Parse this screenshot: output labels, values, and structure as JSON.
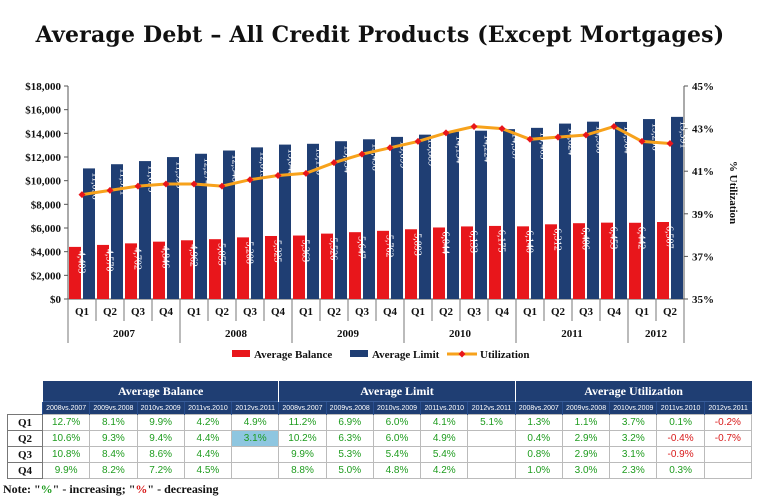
{
  "chart_data": {
    "type": "bar",
    "title": "Average Debt – All Credit Products (Except Mortgages)",
    "ylabel": "",
    "y2label": "% Utilization",
    "ylim": [
      0,
      18000
    ],
    "y2lim": [
      35,
      45
    ],
    "yticks": [
      "$0",
      "$2,000",
      "$4,000",
      "$6,000",
      "$8,000",
      "$10,000",
      "$12,000",
      "$14,000",
      "$16,000",
      "$18,000"
    ],
    "y2ticks": [
      "35%",
      "37%",
      "39%",
      "41%",
      "43%",
      "45%"
    ],
    "quarters": [
      "Q1",
      "Q2",
      "Q3",
      "Q4",
      "Q1",
      "Q2",
      "Q3",
      "Q4",
      "Q1",
      "Q2",
      "Q3",
      "Q4",
      "Q1",
      "Q2",
      "Q3",
      "Q4",
      "Q1",
      "Q2",
      "Q3",
      "Q4",
      "Q1",
      "Q2"
    ],
    "years": [
      {
        "label": "2007",
        "count": 4
      },
      {
        "label": "2008",
        "count": 4
      },
      {
        "label": "2009",
        "count": 4
      },
      {
        "label": "2010",
        "count": 4
      },
      {
        "label": "2011",
        "count": 4
      },
      {
        "label": "2012",
        "count": 2
      }
    ],
    "series": [
      {
        "name": "Average Balance",
        "kind": "bar",
        "color": "#e8161b",
        "values": [
          4403,
          4570,
          4702,
          4846,
          4962,
          5055,
          5208,
          5325,
          5363,
          5526,
          5647,
          5762,
          5893,
          6044,
          6133,
          6175,
          6140,
          6312,
          6406,
          6453,
          6442,
          6507
        ],
        "labels": [
          "4,403",
          "4,570",
          "4,702",
          "4,846",
          "4,962",
          "5,055",
          "5,208",
          "5,325",
          "5,363",
          "5,526",
          "5,647",
          "5,762",
          "5,893",
          "6,044",
          "6,133",
          "6,175",
          "6,140",
          "6,312",
          "6,406",
          "6,453",
          "6,442",
          "6,507"
        ]
      },
      {
        "name": "Average Limit",
        "kind": "bar",
        "color": "#1f3e73",
        "values": [
          11036,
          11391,
          11655,
          11993,
          12274,
          12548,
          12813,
          13048,
          13116,
          13334,
          13498,
          13699,
          13889,
          14134,
          14224,
          14357,
          14463,
          14824,
          14986,
          14964,
          15206,
          15391
        ],
        "labels": [
          "11,036",
          "11,391",
          "11,655",
          "11,993",
          "12,274",
          "12,548",
          "12,813",
          "13,048",
          "13,116",
          "13,334",
          "13,498",
          "13,699",
          "13,889",
          "14,134",
          "14,224",
          "14,357",
          "14,463",
          "14,824",
          "14,986",
          "14,964",
          "15,206",
          "15,391"
        ]
      },
      {
        "name": "Utilization",
        "kind": "line",
        "color": "#f7a21b",
        "marker": "#e8161b",
        "values": [
          39.9,
          40.1,
          40.3,
          40.4,
          40.4,
          40.3,
          40.6,
          40.8,
          40.9,
          41.4,
          41.8,
          42.1,
          42.4,
          42.8,
          43.1,
          43.0,
          42.5,
          42.6,
          42.7,
          43.1,
          42.4,
          42.3
        ]
      }
    ],
    "legend_position": "bottom"
  },
  "table": {
    "groups": [
      "Average Balance",
      "Average Limit",
      "Average Utilization"
    ],
    "cols": [
      "2008vs.2007",
      "2009vs.2008",
      "2010vs.2009",
      "2011vs.2010",
      "2012vs.2011"
    ],
    "rows": [
      {
        "q": "Q1",
        "balance": [
          {
            "v": "12.7%"
          },
          {
            "v": "8.1%"
          },
          {
            "v": "9.9%"
          },
          {
            "v": "4.2%"
          },
          {
            "v": "4.9%"
          }
        ],
        "limit": [
          {
            "v": "11.2%"
          },
          {
            "v": "6.9%"
          },
          {
            "v": "6.0%"
          },
          {
            "v": "4.1%"
          },
          {
            "v": "5.1%"
          }
        ],
        "util": [
          {
            "v": "1.3%"
          },
          {
            "v": "1.1%"
          },
          {
            "v": "3.7%"
          },
          {
            "v": "0.1%"
          },
          {
            "v": "-0.2%",
            "neg": true
          }
        ]
      },
      {
        "q": "Q2",
        "balance": [
          {
            "v": "10.6%"
          },
          {
            "v": "9.3%"
          },
          {
            "v": "9.4%"
          },
          {
            "v": "4.4%"
          },
          {
            "v": "3.1%",
            "hl": true
          }
        ],
        "limit": [
          {
            "v": "10.2%"
          },
          {
            "v": "6.3%"
          },
          {
            "v": "6.0%"
          },
          {
            "v": "4.9%"
          },
          {
            "v": ""
          }
        ],
        "util": [
          {
            "v": "0.4%"
          },
          {
            "v": "2.9%"
          },
          {
            "v": "3.2%"
          },
          {
            "v": "-0.4%",
            "neg": true
          },
          {
            "v": "-0.7%",
            "neg": true
          }
        ]
      },
      {
        "q": "Q3",
        "balance": [
          {
            "v": "10.8%"
          },
          {
            "v": "8.4%"
          },
          {
            "v": "8.6%"
          },
          {
            "v": "4.4%"
          },
          {
            "v": ""
          }
        ],
        "limit": [
          {
            "v": "9.9%"
          },
          {
            "v": "5.3%"
          },
          {
            "v": "5.4%"
          },
          {
            "v": "5.4%"
          },
          {
            "v": ""
          }
        ],
        "util": [
          {
            "v": "0.8%"
          },
          {
            "v": "2.9%"
          },
          {
            "v": "3.1%"
          },
          {
            "v": "-0.9%",
            "neg": true
          },
          {
            "v": ""
          }
        ]
      },
      {
        "q": "Q4",
        "balance": [
          {
            "v": "9.9%"
          },
          {
            "v": "8.2%"
          },
          {
            "v": "7.2%"
          },
          {
            "v": "4.5%"
          },
          {
            "v": ""
          }
        ],
        "limit": [
          {
            "v": "8.8%"
          },
          {
            "v": "5.0%"
          },
          {
            "v": "4.8%"
          },
          {
            "v": "4.2%"
          },
          {
            "v": ""
          }
        ],
        "util": [
          {
            "v": "1.0%"
          },
          {
            "v": "3.0%"
          },
          {
            "v": "2.3%"
          },
          {
            "v": "0.3%"
          },
          {
            "v": ""
          }
        ]
      }
    ]
  },
  "note": {
    "prefix": "Note: \"",
    "pos": "%",
    "mid": "\" - increasing; \"",
    "neg": "%",
    "suffix": "\" - decreasing"
  }
}
